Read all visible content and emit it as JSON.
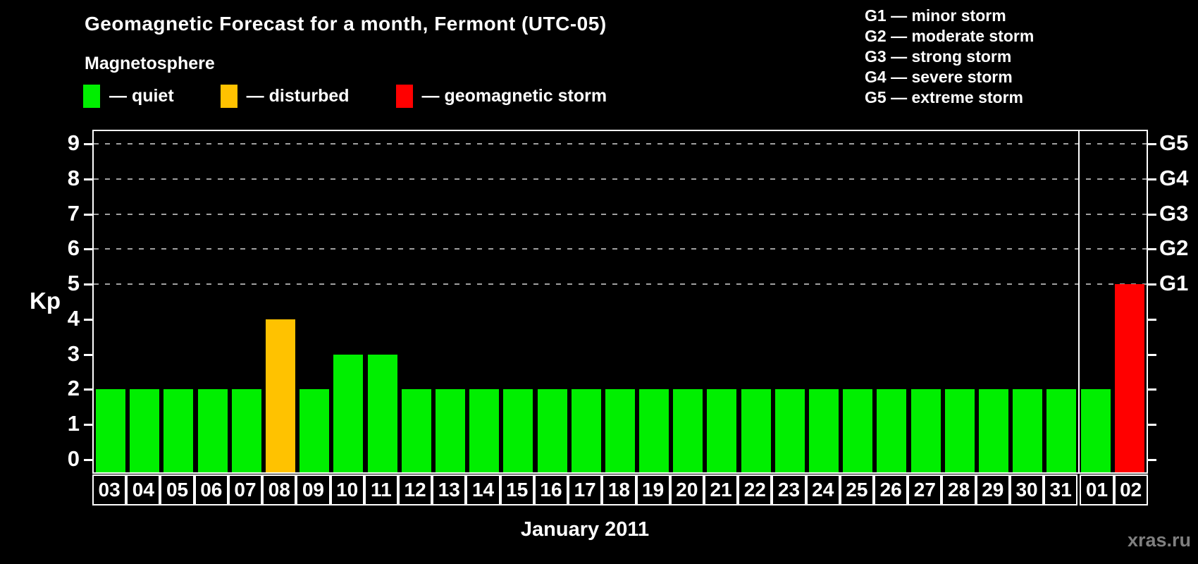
{
  "title": "Geomagnetic Forecast for a month, Fermont (UTC-05)",
  "subtitle": "Magnetosphere",
  "legend": {
    "items": [
      {
        "status": "quiet",
        "label": "— quiet",
        "color": "#00ef00"
      },
      {
        "status": "disturbed",
        "label": "— disturbed",
        "color": "#ffc200"
      },
      {
        "status": "storm",
        "label": "— geomagnetic storm",
        "color": "#ff0000"
      }
    ]
  },
  "g_legend": {
    "items": [
      "G1 — minor storm",
      "G2 — moderate storm",
      "G3 — strong storm",
      "G4 — severe storm",
      "G5 — extreme storm"
    ]
  },
  "y_axis": {
    "label": "Kp",
    "ticks": [
      0,
      1,
      2,
      3,
      4,
      5,
      6,
      7,
      8,
      9
    ]
  },
  "x_axis": {
    "label": "January 2011"
  },
  "watermark": "xras.ru",
  "chart_data": {
    "type": "bar",
    "title": "Geomagnetic Forecast for a month, Fermont (UTC-05)",
    "xlabel": "January 2011",
    "ylabel": "Kp",
    "ylim": [
      0,
      9
    ],
    "grid": "dashed horizontal lines at Kp 5-9",
    "gridlines_at": [
      5,
      6,
      7,
      8,
      9
    ],
    "categories": [
      "03",
      "04",
      "05",
      "06",
      "07",
      "08",
      "09",
      "10",
      "11",
      "12",
      "13",
      "14",
      "15",
      "16",
      "17",
      "18",
      "19",
      "20",
      "21",
      "22",
      "23",
      "24",
      "25",
      "26",
      "27",
      "28",
      "29",
      "30",
      "31",
      "01",
      "02"
    ],
    "values": [
      2,
      2,
      2,
      2,
      2,
      4,
      2,
      3,
      3,
      2,
      2,
      2,
      2,
      2,
      2,
      2,
      2,
      2,
      2,
      2,
      2,
      2,
      2,
      2,
      2,
      2,
      2,
      2,
      2,
      2,
      5
    ],
    "statuses": [
      "quiet",
      "quiet",
      "quiet",
      "quiet",
      "quiet",
      "disturbed",
      "quiet",
      "quiet",
      "quiet",
      "quiet",
      "quiet",
      "quiet",
      "quiet",
      "quiet",
      "quiet",
      "quiet",
      "quiet",
      "quiet",
      "quiet",
      "quiet",
      "quiet",
      "quiet",
      "quiet",
      "quiet",
      "quiet",
      "quiet",
      "quiet",
      "quiet",
      "quiet",
      "quiet",
      "storm"
    ],
    "month_boundary_index": 29,
    "colors": {
      "quiet": "#00ef00",
      "disturbed": "#ffc200",
      "storm": "#ff0000"
    },
    "right_axis": {
      "labels": [
        {
          "text": "G1",
          "kp": 5
        },
        {
          "text": "G2",
          "kp": 6
        },
        {
          "text": "G3",
          "kp": 7
        },
        {
          "text": "G4",
          "kp": 8
        },
        {
          "text": "G5",
          "kp": 9
        }
      ]
    }
  }
}
